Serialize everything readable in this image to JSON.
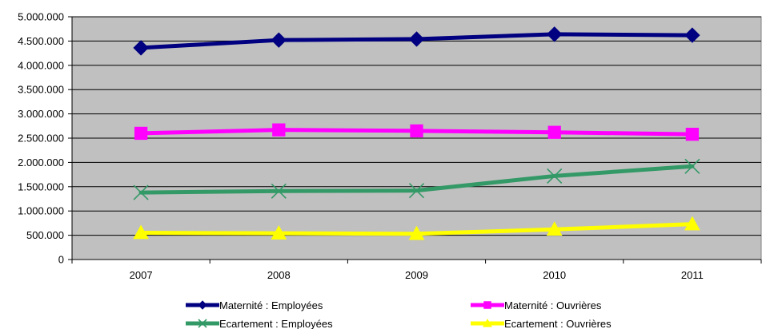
{
  "chart_data": {
    "type": "line",
    "categories": [
      "2007",
      "2008",
      "2009",
      "2010",
      "2011"
    ],
    "ylim": [
      0,
      5000000
    ],
    "y_ticks": [
      0,
      500000,
      1000000,
      1500000,
      2000000,
      2500000,
      3000000,
      3500000,
      4000000,
      4500000,
      5000000
    ],
    "y_tick_labels": [
      "0",
      "500.000",
      "1.000.000",
      "1.500.000",
      "2.000.000",
      "2.500.000",
      "3.000.000",
      "3.500.000",
      "4.000.000",
      "4.500.000",
      "5.000.000"
    ],
    "grid": "horizontal",
    "plot_background": "#c0c0c0",
    "legend_position": "bottom",
    "series": [
      {
        "name": "Maternité : Employées",
        "color": "#000080",
        "marker": "diamond",
        "values": [
          4360000,
          4520000,
          4540000,
          4640000,
          4620000
        ]
      },
      {
        "name": "Maternité : Ouvrières",
        "color": "#ff00ff",
        "marker": "square",
        "values": [
          2600000,
          2670000,
          2650000,
          2620000,
          2580000
        ]
      },
      {
        "name": "Ecartement : Employées",
        "color": "#339966",
        "marker": "x",
        "values": [
          1380000,
          1410000,
          1420000,
          1720000,
          1920000
        ]
      },
      {
        "name": "Ecartement : Ouvrières",
        "color": "#ffff00",
        "marker": "triangle",
        "values": [
          550000,
          540000,
          530000,
          620000,
          730000
        ]
      }
    ]
  }
}
